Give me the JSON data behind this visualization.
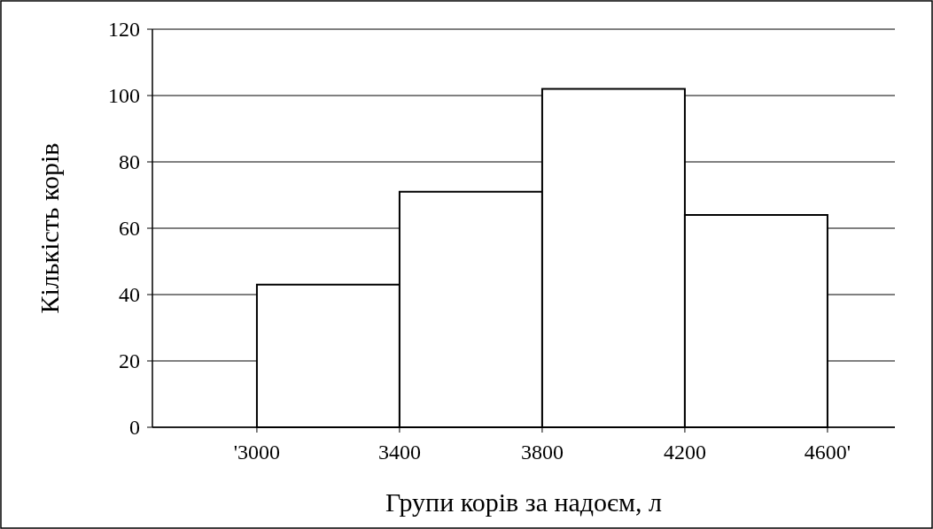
{
  "chart_data": {
    "type": "histogram",
    "xlabel": "Групи корів за надоєм, л",
    "ylabel": "Кількість корів",
    "bins": [
      3000,
      3400,
      3800,
      4200,
      4600
    ],
    "values": [
      43,
      71,
      102,
      64
    ],
    "color": "#ffffff",
    "xlim": [
      2707,
      4789
    ],
    "xticks": [
      {
        "value": 3000,
        "label": "'3000"
      },
      3400,
      3800,
      4200,
      {
        "value": 4600,
        "label": "4600'"
      }
    ],
    "ylim": [
      0,
      120
    ],
    "yticks": [
      0,
      20,
      40,
      60,
      80,
      100,
      120
    ],
    "grid": "y"
  }
}
